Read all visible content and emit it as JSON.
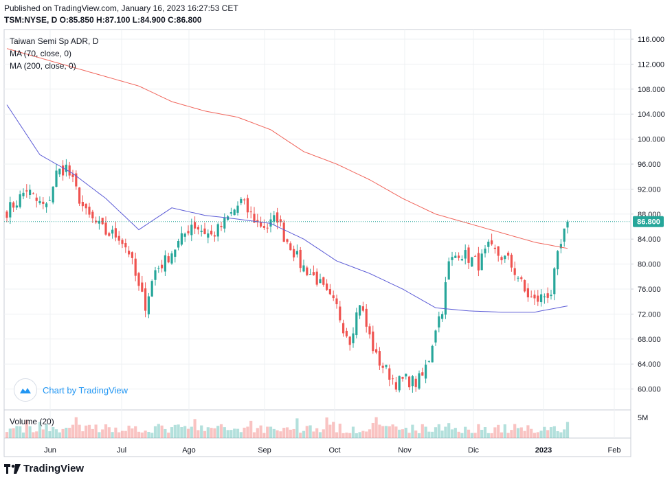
{
  "header": {
    "published": "Published on TradingView.com, January 16, 2023 16:27:53 CET",
    "symbol_line": "TSM:NYSE, D O:85.850 H:87.100 L:84.900 C:86.800"
  },
  "legend": {
    "title": "Taiwan Semi Sp ADR, D",
    "ma70": "MA (70, close, 0)",
    "ma200": "MA (200, close, 0)",
    "volume": "Volume (20)"
  },
  "watermark": {
    "text": "Chart by TradingView",
    "icon": "tradingview-cloud-icon"
  },
  "footer": {
    "brand": "TradingView",
    "icon": "tradingview-logo-icon"
  },
  "colors": {
    "up": "#26a69a",
    "down": "#ef5350",
    "ma70": "#5b5bd6",
    "ma200": "#f0645a",
    "last_price": "#26a69a"
  },
  "chart_data": {
    "type": "candlestick",
    "y_ticks": [
      "116.000",
      "112.000",
      "108.000",
      "104.000",
      "100.000",
      "96.000",
      "92.000",
      "88.000",
      "84.000",
      "80.000",
      "76.000",
      "72.000",
      "68.000",
      "64.000",
      "60.000"
    ],
    "y_range": [
      57.5,
      117.5
    ],
    "x_ticks": [
      "Jun",
      "Jul",
      "Ago",
      "Sep",
      "Oct",
      "Nov",
      "Dic",
      "2023",
      "Feb"
    ],
    "volume_tick": "5M",
    "last_price": 86.8,
    "last_price_label": "86.800",
    "close_anchors": [
      [
        0,
        88.5
      ],
      [
        3,
        90
      ],
      [
        6,
        92
      ],
      [
        9,
        90
      ],
      [
        12,
        89
      ],
      [
        15,
        94.5
      ],
      [
        18,
        95.5
      ],
      [
        20,
        93
      ],
      [
        24,
        88
      ],
      [
        27,
        86.5
      ],
      [
        30,
        85
      ],
      [
        34,
        84.5
      ],
      [
        37,
        82
      ],
      [
        40,
        76
      ],
      [
        42,
        73.5
      ],
      [
        45,
        79
      ],
      [
        48,
        80.5
      ],
      [
        50,
        82
      ],
      [
        53,
        84
      ],
      [
        56,
        86.5
      ],
      [
        59,
        85.5
      ],
      [
        62,
        84.5
      ],
      [
        65,
        86
      ],
      [
        68,
        88
      ],
      [
        71,
        90
      ],
      [
        73,
        88.5
      ],
      [
        76,
        86.5
      ],
      [
        79,
        86
      ],
      [
        82,
        87.5
      ],
      [
        84,
        84.5
      ],
      [
        86,
        83
      ],
      [
        89,
        80
      ],
      [
        91,
        79
      ],
      [
        94,
        77.5
      ],
      [
        97,
        75
      ],
      [
        100,
        73
      ],
      [
        102,
        70
      ],
      [
        104,
        68
      ],
      [
        107,
        74
      ],
      [
        109,
        70
      ],
      [
        112,
        65
      ],
      [
        115,
        63
      ],
      [
        118,
        61
      ],
      [
        121,
        61.5
      ],
      [
        124,
        61
      ],
      [
        126,
        62
      ],
      [
        128,
        65
      ],
      [
        130,
        70
      ],
      [
        132,
        73
      ],
      [
        134,
        80
      ],
      [
        137,
        82
      ],
      [
        140,
        81
      ],
      [
        143,
        80
      ],
      [
        146,
        82.5
      ],
      [
        149,
        81.5
      ],
      [
        152,
        80.5
      ],
      [
        155,
        78
      ],
      [
        157,
        75.5
      ],
      [
        160,
        74
      ],
      [
        163,
        75
      ],
      [
        165,
        75.5
      ],
      [
        167,
        81
      ],
      [
        170,
        86.8
      ]
    ],
    "ma70_anchors": [
      [
        0,
        105.5
      ],
      [
        10,
        97.5
      ],
      [
        20,
        94.5
      ],
      [
        30,
        90.5
      ],
      [
        40,
        85.5
      ],
      [
        50,
        89
      ],
      [
        60,
        87.8
      ],
      [
        70,
        87.2
      ],
      [
        80,
        86.5
      ],
      [
        90,
        84
      ],
      [
        100,
        80.5
      ],
      [
        110,
        78.5
      ],
      [
        120,
        76
      ],
      [
        130,
        73
      ],
      [
        140,
        72.5
      ],
      [
        150,
        72.3
      ],
      [
        160,
        72.3
      ],
      [
        170,
        73.3
      ]
    ],
    "ma200_anchors": [
      [
        0,
        114.5
      ],
      [
        10,
        113
      ],
      [
        20,
        111.5
      ],
      [
        30,
        110
      ],
      [
        40,
        108.5
      ],
      [
        50,
        106
      ],
      [
        60,
        104.5
      ],
      [
        70,
        103.5
      ],
      [
        80,
        101.5
      ],
      [
        90,
        98
      ],
      [
        100,
        96
      ],
      [
        110,
        93.5
      ],
      [
        120,
        90.5
      ],
      [
        130,
        88
      ],
      [
        140,
        86.5
      ],
      [
        150,
        85
      ],
      [
        160,
        83.5
      ],
      [
        170,
        82.5
      ]
    ]
  }
}
